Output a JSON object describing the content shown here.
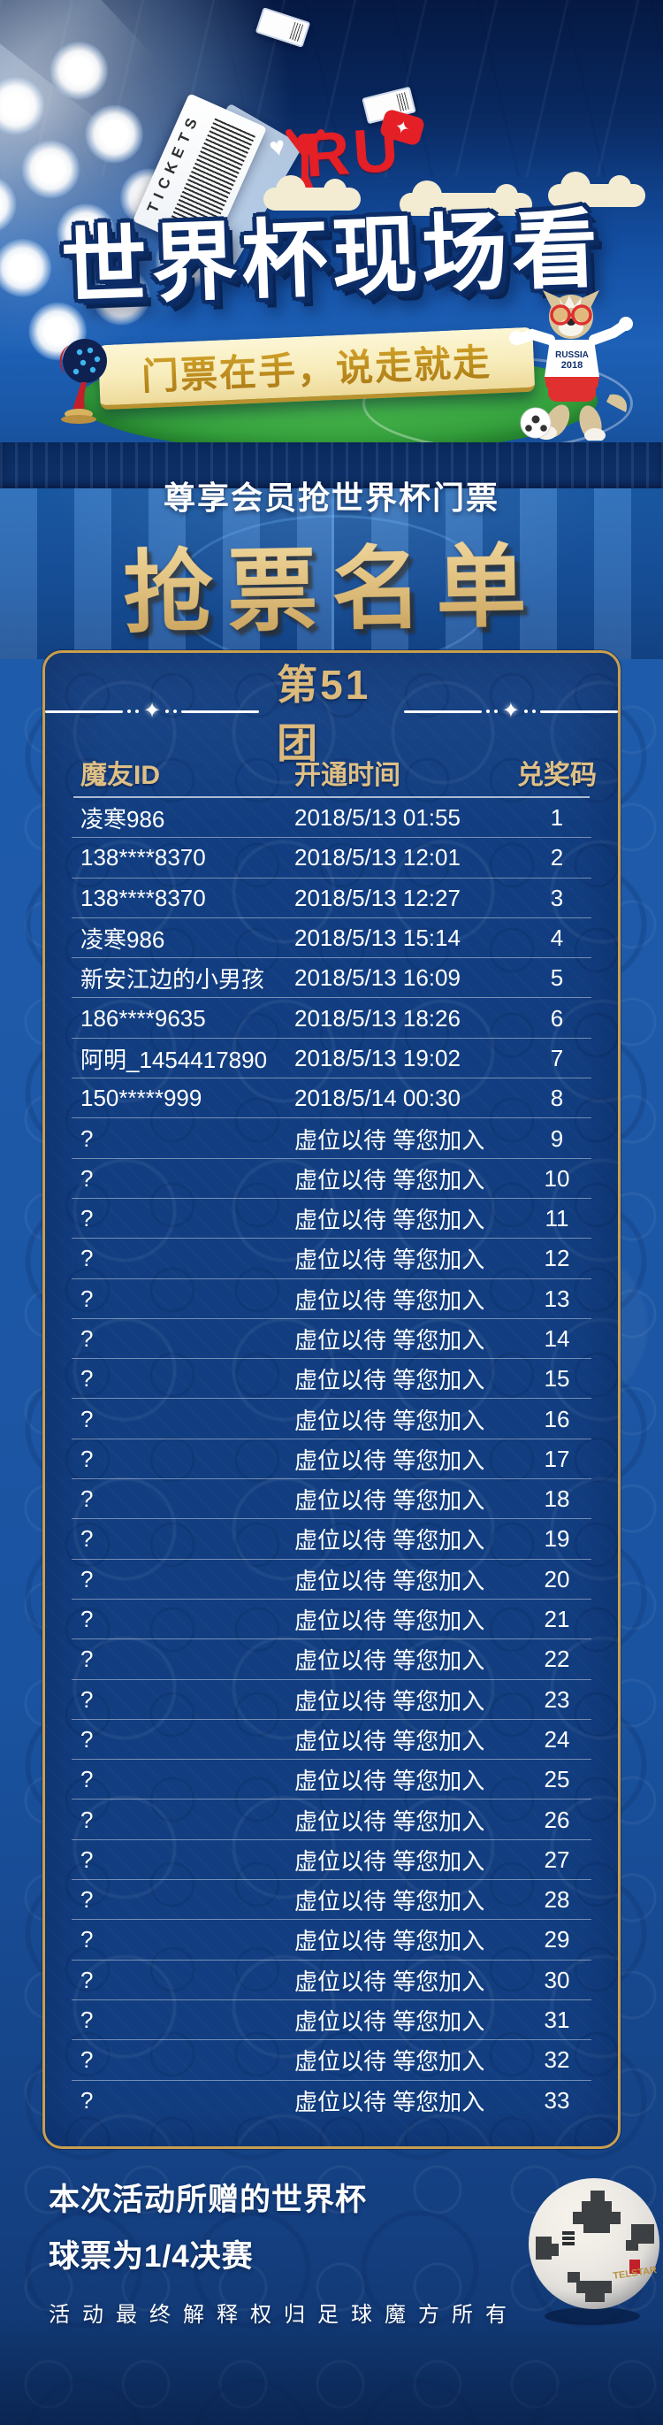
{
  "hero": {
    "tickets_label": "TICKETS",
    "ru_text": "RU",
    "heart_glyph": "♥",
    "star_glyph": "✦",
    "title": "世界杯现场看",
    "banner_text": "门票在手，说走就走",
    "mascot_shirt_line1": "RUSSIA",
    "mascot_shirt_line2": "2018"
  },
  "subtitle": "尊享会员抢世界杯门票",
  "list_title": "抢票名单",
  "panel": {
    "group_title": "第51团",
    "diamond_glyph": "✦",
    "columns": [
      "魔友ID",
      "开通时间",
      "兑奖码"
    ],
    "rows": [
      [
        "凌寒986",
        "2018/5/13 01:55",
        "1"
      ],
      [
        "138****8370",
        "2018/5/13 12:01",
        "2"
      ],
      [
        "138****8370",
        "2018/5/13 12:27",
        "3"
      ],
      [
        "凌寒986",
        "2018/5/13 15:14",
        "4"
      ],
      [
        "新安江边的小男孩",
        "2018/5/13 16:09",
        "5"
      ],
      [
        "186****9635",
        "2018/5/13 18:26",
        "6"
      ],
      [
        "阿明_1454417890",
        "2018/5/13 19:02",
        "7"
      ],
      [
        "150*****999",
        "2018/5/14 00:30",
        "8"
      ],
      [
        "?",
        "虚位以待 等您加入",
        "9"
      ],
      [
        "?",
        "虚位以待 等您加入",
        "10"
      ],
      [
        "?",
        "虚位以待 等您加入",
        "11"
      ],
      [
        "?",
        "虚位以待 等您加入",
        "12"
      ],
      [
        "?",
        "虚位以待 等您加入",
        "13"
      ],
      [
        "?",
        "虚位以待 等您加入",
        "14"
      ],
      [
        "?",
        "虚位以待 等您加入",
        "15"
      ],
      [
        "?",
        "虚位以待 等您加入",
        "16"
      ],
      [
        "?",
        "虚位以待 等您加入",
        "17"
      ],
      [
        "?",
        "虚位以待 等您加入",
        "18"
      ],
      [
        "?",
        "虚位以待 等您加入",
        "19"
      ],
      [
        "?",
        "虚位以待 等您加入",
        "20"
      ],
      [
        "?",
        "虚位以待 等您加入",
        "21"
      ],
      [
        "?",
        "虚位以待 等您加入",
        "22"
      ],
      [
        "?",
        "虚位以待 等您加入",
        "23"
      ],
      [
        "?",
        "虚位以待 等您加入",
        "24"
      ],
      [
        "?",
        "虚位以待 等您加入",
        "25"
      ],
      [
        "?",
        "虚位以待 等您加入",
        "26"
      ],
      [
        "?",
        "虚位以待 等您加入",
        "27"
      ],
      [
        "?",
        "虚位以待 等您加入",
        "28"
      ],
      [
        "?",
        "虚位以待 等您加入",
        "29"
      ],
      [
        "?",
        "虚位以待 等您加入",
        "30"
      ],
      [
        "?",
        "虚位以待 等您加入",
        "31"
      ],
      [
        "?",
        "虚位以待 等您加入",
        "32"
      ],
      [
        "?",
        "虚位以待 等您加入",
        "33"
      ]
    ]
  },
  "footer": {
    "note_line1": "本次活动所赠的世界杯",
    "note_line2": "球票为1/4决赛",
    "disclaimer": "活动最终解释权归足球魔方所有",
    "ball_text": "TELSTAR"
  },
  "colors": {
    "gold": "#dcba7c",
    "gold_border": "#c99f4e",
    "red": "#e41f26",
    "green": "#36a23e",
    "cream_banner": "#f7ecba",
    "panel_blue": "#123e81",
    "page_blue": "#1e5aa9"
  }
}
